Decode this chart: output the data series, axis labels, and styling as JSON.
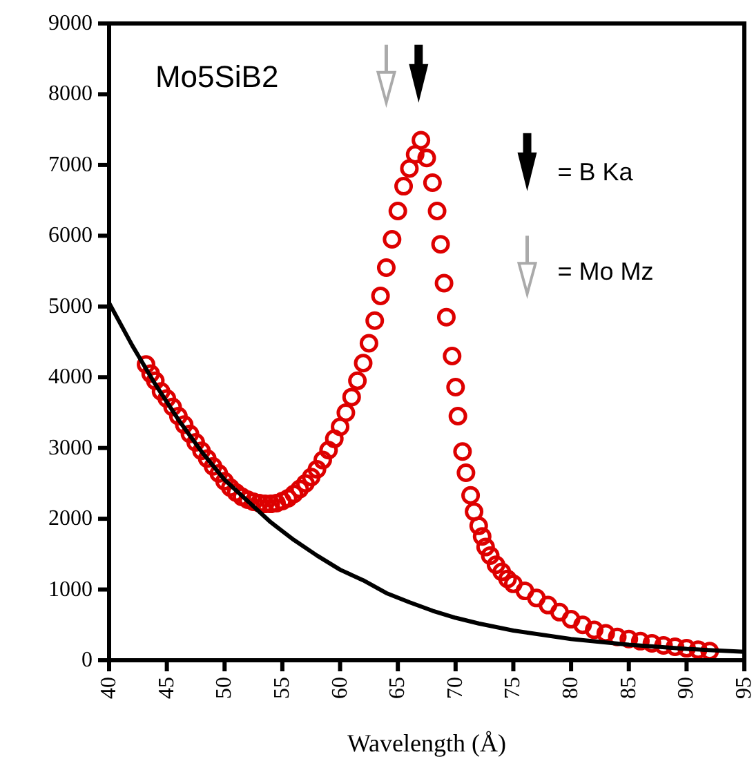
{
  "chart_data": {
    "type": "scatter",
    "xlabel": "Wavelength (Å)",
    "xlim": [
      40,
      95
    ],
    "xticks": [
      40,
      45,
      50,
      55,
      60,
      65,
      70,
      75,
      80,
      85,
      90,
      95
    ],
    "ylim": [
      0,
      9000
    ],
    "yticks": [
      0,
      1000,
      2000,
      3000,
      4000,
      5000,
      6000,
      7000,
      8000,
      9000
    ],
    "grid": false,
    "annotations": [
      "Mo5SiB2",
      "= B Ka",
      "= Mo Mz"
    ],
    "series": [
      {
        "marker": "circle",
        "color": "#dd0000",
        "x": [
          43.2,
          43.6,
          44,
          44.5,
          45,
          45.5,
          46,
          46.5,
          47,
          47.5,
          48,
          48.5,
          49,
          49.5,
          50,
          50.5,
          51,
          51.5,
          52,
          52.5,
          53,
          53.5,
          54,
          54.5,
          55,
          55.5,
          56,
          56.5,
          57,
          57.5,
          58,
          58.5,
          59,
          59.5,
          60,
          60.5,
          61,
          61.5,
          62,
          62.5,
          63,
          63.5,
          64,
          64.5,
          65,
          65.5,
          66,
          66.5,
          67,
          67.5,
          68,
          68.4,
          68.7,
          69,
          69.2,
          69.7,
          70,
          70.2,
          70.6,
          70.9,
          71.3,
          71.6,
          72,
          72.3,
          72.6,
          73,
          73.5,
          74,
          74.5,
          75,
          76,
          77,
          78,
          79,
          80,
          81,
          82,
          83,
          84,
          85,
          86,
          87,
          88,
          89,
          90,
          91,
          92
        ],
        "values": [
          4180,
          4050,
          3950,
          3800,
          3700,
          3580,
          3450,
          3330,
          3200,
          3080,
          2960,
          2850,
          2740,
          2640,
          2530,
          2440,
          2370,
          2310,
          2270,
          2240,
          2220,
          2210,
          2210,
          2220,
          2250,
          2290,
          2350,
          2420,
          2500,
          2590,
          2700,
          2830,
          2970,
          3130,
          3300,
          3500,
          3720,
          3950,
          4200,
          4480,
          4800,
          5150,
          5550,
          5950,
          6350,
          6700,
          6950,
          7150,
          7350,
          7100,
          6750,
          6350,
          5880,
          5330,
          4850,
          4300,
          3860,
          3450,
          2950,
          2650,
          2330,
          2100,
          1900,
          1750,
          1600,
          1480,
          1350,
          1250,
          1150,
          1080,
          980,
          880,
          780,
          680,
          580,
          500,
          430,
          380,
          330,
          300,
          270,
          240,
          210,
          190,
          170,
          150,
          130
        ]
      },
      {
        "type": "line",
        "marker": "none",
        "line_style": "solid",
        "color": "#000000",
        "x": [
          40,
          42,
          44,
          46,
          48,
          50,
          52,
          54,
          56,
          58,
          60,
          62,
          64,
          66,
          68,
          70,
          72,
          75,
          80,
          85,
          90,
          95
        ],
        "values": [
          5050,
          4450,
          3900,
          3400,
          2950,
          2550,
          2250,
          1950,
          1700,
          1480,
          1280,
          1130,
          950,
          820,
          700,
          600,
          520,
          420,
          300,
          220,
          160,
          120
        ]
      }
    ]
  }
}
